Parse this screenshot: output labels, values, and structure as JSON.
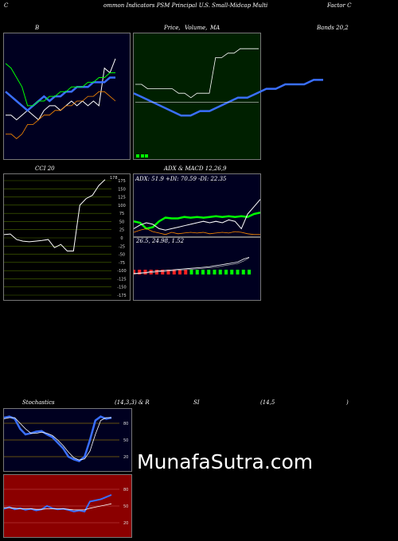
{
  "header": {
    "left": "C",
    "center": "ommon  Indicators PSM Principal U.S. Small-Midcap Multi",
    "right": "Factor C"
  },
  "panels": {
    "bollinger": {
      "title": "B"
    },
    "price_ma": {
      "title_a": "Price,",
      "title_b": "Volume,",
      "title_c": "MA",
      "title_d": "Bands 20,2"
    },
    "cci": {
      "title": "CCI 20",
      "value_label": "178"
    },
    "adx_macd": {
      "title": "ADX  & MACD 12,26,9",
      "adx_label": "ADX: 51.9 +DI: 70.59 -DI: 22.35",
      "macd_label": "26.5,  24.98,  1.52"
    },
    "stochastics": {
      "title": "Stochastics",
      "params": "(14,3,3) & R",
      "rsi_a": "SI",
      "rsi_b": "(14,5",
      "rsi_c": ")"
    },
    "rsi": {}
  },
  "watermark": "MunafaSutra.com",
  "colors": {
    "navy_bg": "#000020",
    "green_bg": "#002000",
    "olive_bg": "#000000",
    "red_bg": "#8b0000",
    "blue": "#3a6fff",
    "green": "#00ff00",
    "orange": "#ff8c00",
    "white": "#ffffff"
  },
  "chart_data": [
    {
      "type": "line",
      "name": "bollinger",
      "x": [
        0,
        1,
        2,
        3,
        4,
        5,
        6,
        7,
        8,
        9,
        10,
        11,
        12,
        13,
        14,
        15,
        16,
        17,
        18,
        19,
        20
      ],
      "series": [
        {
          "values": [
            38,
            38,
            37,
            38,
            39,
            38,
            37,
            39,
            40,
            40,
            39,
            40,
            41,
            40,
            41,
            40,
            41,
            40,
            48,
            47,
            50
          ]
        },
        {
          "values": [
            43,
            42,
            41,
            40,
            39,
            40,
            41,
            42,
            41,
            42,
            42,
            43,
            43,
            44,
            44,
            44,
            45,
            45,
            45,
            46,
            46
          ]
        },
        {
          "values": [
            49,
            48,
            46,
            44,
            40,
            40,
            41,
            41,
            42,
            42,
            43,
            43,
            44,
            44,
            44,
            45,
            45,
            46,
            46,
            47,
            47
          ]
        },
        {
          "values": [
            34,
            34,
            33,
            34,
            36,
            36,
            37,
            38,
            38,
            39,
            39,
            40,
            40,
            41,
            41,
            42,
            42,
            43,
            43,
            42,
            41
          ]
        }
      ]
    },
    {
      "type": "line",
      "name": "price_ma",
      "x": [
        0,
        1,
        2,
        3,
        4,
        5,
        6,
        7,
        8,
        9,
        10,
        11,
        12,
        13,
        14,
        15,
        16,
        17,
        18,
        19,
        20
      ],
      "series": [
        {
          "values": [
            48,
            48,
            47,
            47,
            47,
            47,
            47,
            46,
            46,
            45,
            46,
            46,
            46,
            54,
            54,
            55,
            55,
            56,
            56,
            56,
            56
          ]
        },
        {
          "values": [
            46,
            45,
            44,
            43,
            42,
            41,
            41,
            42,
            42,
            43,
            44,
            45,
            45,
            46,
            47,
            47,
            48,
            48,
            48,
            49,
            49
          ]
        },
        {
          "values": [
            44,
            44,
            44,
            44,
            44,
            44,
            44,
            44,
            44,
            44,
            44,
            44,
            44,
            44,
            44,
            44,
            44,
            44,
            44,
            44,
            44
          ]
        }
      ]
    },
    {
      "type": "line",
      "name": "cci",
      "ylim": [
        -175,
        175
      ],
      "y_ticks": [
        175,
        150,
        125,
        100,
        75,
        50,
        25,
        0,
        -25,
        -50,
        -75,
        -100,
        -125,
        -150,
        -175
      ],
      "x": [
        0,
        1,
        2,
        3,
        4,
        5,
        6,
        7,
        8,
        9,
        10,
        11,
        12,
        13,
        14,
        15,
        16
      ],
      "series": [
        {
          "values": [
            10,
            12,
            -5,
            -10,
            -12,
            -10,
            -8,
            -5,
            -30,
            -20,
            -40,
            -40,
            100,
            120,
            130,
            160,
            178
          ]
        }
      ]
    },
    {
      "type": "line",
      "name": "adx",
      "ylim": [
        0,
        100
      ],
      "x": [
        0,
        1,
        2,
        3,
        4,
        5,
        6,
        7,
        8,
        9,
        10,
        11,
        12,
        13,
        14,
        15,
        16,
        17,
        18,
        19,
        20
      ],
      "series": [
        {
          "values": [
            40,
            38,
            30,
            32,
            40,
            45,
            44,
            44,
            46,
            45,
            46,
            45,
            46,
            47,
            46,
            47,
            46,
            47,
            46,
            50,
            52
          ]
        },
        {
          "values": [
            30,
            35,
            38,
            36,
            30,
            28,
            30,
            32,
            34,
            36,
            38,
            40,
            38,
            40,
            38,
            42,
            40,
            30,
            50,
            60,
            70
          ]
        },
        {
          "values": [
            25,
            28,
            30,
            26,
            24,
            22,
            25,
            23,
            24,
            25,
            24,
            25,
            23,
            24,
            25,
            24,
            26,
            25,
            23,
            22,
            22
          ]
        }
      ]
    },
    {
      "type": "line",
      "name": "macd",
      "x": [
        0,
        1,
        2,
        3,
        4,
        5,
        6,
        7,
        8,
        9,
        10,
        11,
        12,
        13,
        14,
        15,
        16,
        17,
        18,
        19,
        20
      ],
      "series": [
        {
          "values": [
            -8,
            -7,
            -6,
            -4,
            -3,
            -2,
            -1,
            0,
            1,
            2,
            3,
            4,
            5,
            6,
            8,
            10,
            12,
            14,
            16,
            22,
            26
          ]
        },
        {
          "values": [
            -9,
            -8,
            -7,
            -6,
            -5,
            -4,
            -3,
            -2,
            -1,
            0,
            1,
            2,
            3,
            4,
            5,
            7,
            9,
            11,
            13,
            18,
            25
          ]
        }
      ]
    },
    {
      "type": "line",
      "name": "stochastics",
      "ylim": [
        0,
        100
      ],
      "y_ticks": [
        80,
        50,
        20
      ],
      "x": [
        0,
        1,
        2,
        3,
        4,
        5,
        6,
        7,
        8,
        9,
        10,
        11,
        12,
        13,
        14,
        15,
        16,
        17,
        18,
        19,
        20
      ],
      "series": [
        {
          "values": [
            90,
            92,
            88,
            70,
            60,
            62,
            65,
            66,
            60,
            55,
            45,
            35,
            20,
            15,
            12,
            20,
            50,
            85,
            92,
            88,
            90
          ]
        },
        {
          "values": [
            88,
            90,
            90,
            80,
            70,
            62,
            62,
            64,
            62,
            58,
            50,
            40,
            28,
            18,
            14,
            16,
            30,
            60,
            85,
            90,
            90
          ]
        }
      ]
    },
    {
      "type": "line",
      "name": "rsi",
      "ylim": [
        0,
        100
      ],
      "y_ticks": [
        80,
        50,
        20
      ],
      "x": [
        0,
        1,
        2,
        3,
        4,
        5,
        6,
        7,
        8,
        9,
        10,
        11,
        12,
        13,
        14,
        15,
        16,
        17,
        18,
        19,
        20
      ],
      "series": [
        {
          "values": [
            45,
            48,
            44,
            46,
            43,
            45,
            42,
            44,
            50,
            46,
            44,
            45,
            43,
            40,
            42,
            40,
            58,
            60,
            62,
            66,
            70
          ]
        },
        {
          "values": [
            47,
            47,
            46,
            45,
            45,
            45,
            44,
            44,
            45,
            45,
            45,
            45,
            44,
            43,
            43,
            43,
            46,
            48,
            50,
            52,
            54
          ]
        }
      ]
    }
  ]
}
